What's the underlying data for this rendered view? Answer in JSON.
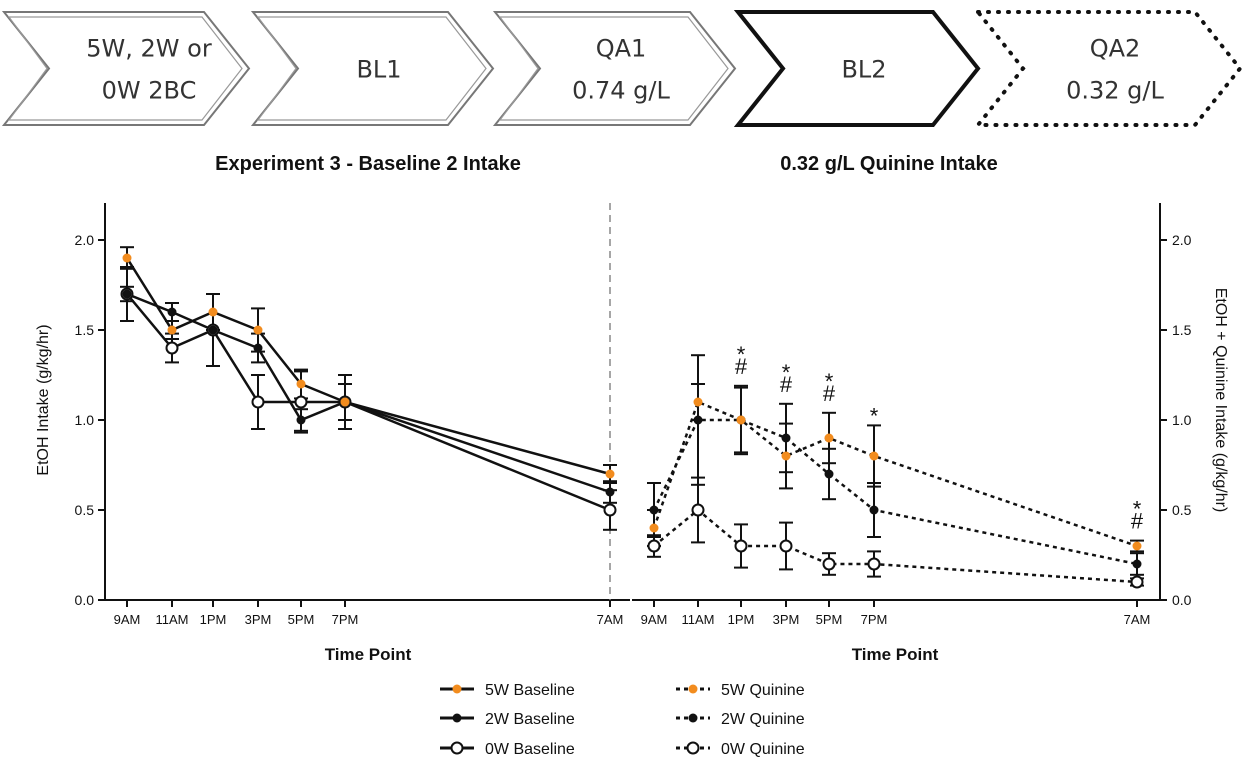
{
  "timeline": {
    "stages": [
      {
        "lines": [
          "5W, 2W or",
          "0W 2BC"
        ],
        "style": "light"
      },
      {
        "lines": [
          "BL1"
        ],
        "style": "light"
      },
      {
        "lines": [
          "QA1",
          "0.74 g/L"
        ],
        "style": "light"
      },
      {
        "lines": [
          "BL2"
        ],
        "style": "bold"
      },
      {
        "lines": [
          "QA2",
          "0.32 g/L"
        ],
        "style": "dotted"
      }
    ]
  },
  "chart_data": [
    {
      "type": "line",
      "title": "Experiment 3 - Baseline 2 Intake",
      "xlabel": "Time Point",
      "ylabel": "EtOH Intake (g/kg/hr)",
      "ylim": [
        0,
        2.0
      ],
      "yticks": [
        "0.0",
        "0.5",
        "1.0",
        "1.5",
        "2.0"
      ],
      "categories": [
        "9AM",
        "11AM",
        "1PM",
        "3PM",
        "5PM",
        "7PM",
        "7AM"
      ],
      "series": [
        {
          "name": "5W Baseline",
          "color": "#f28c1e",
          "marker": "orange-dot",
          "line": "solid",
          "values": [
            1.9,
            1.5,
            1.6,
            1.5,
            1.2,
            1.1,
            0.7
          ],
          "err": [
            0.06,
            0.05,
            0.1,
            0.12,
            0.08,
            0.1,
            0.05
          ]
        },
        {
          "name": "2W Baseline",
          "color": "#111111",
          "marker": "filled-circle",
          "line": "solid",
          "values": [
            1.7,
            1.6,
            1.5,
            1.4,
            1.0,
            1.1,
            0.6
          ],
          "err": [
            0.04,
            0.05,
            0.2,
            0.08,
            0.06,
            0.15,
            0.06
          ]
        },
        {
          "name": "0W Baseline",
          "color": "#111111",
          "marker": "open-circle",
          "line": "solid",
          "values": [
            1.7,
            1.4,
            1.5,
            1.1,
            1.1,
            1.1,
            0.5
          ],
          "err": [
            0.15,
            0.08,
            0.2,
            0.15,
            0.17,
            0.15,
            0.11
          ]
        }
      ]
    },
    {
      "type": "line",
      "title": "0.32 g/L Quinine Intake",
      "xlabel": "Time Point",
      "ylabel": "EtOH + Quinine Intake (g/kg/hr)",
      "ylim": [
        0,
        2.0
      ],
      "yticks": [
        "0.0",
        "0.5",
        "1.0",
        "1.5",
        "2.0"
      ],
      "categories": [
        "9AM",
        "11AM",
        "1PM",
        "3PM",
        "5PM",
        "7PM",
        "7AM"
      ],
      "series": [
        {
          "name": "5W Quinine",
          "color": "#f28c1e",
          "marker": "orange-dot",
          "line": "dotted",
          "values": [
            0.4,
            1.1,
            1.0,
            0.8,
            0.9,
            0.8,
            0.3
          ],
          "err": [
            0.1,
            0.1,
            0.18,
            0.18,
            0.14,
            0.17,
            0.03
          ]
        },
        {
          "name": "2W Quinine",
          "color": "#111111",
          "marker": "filled-circle",
          "line": "dotted",
          "values": [
            0.5,
            1.0,
            1.0,
            0.9,
            0.7,
            0.5,
            0.2
          ],
          "err": [
            0.15,
            0.36,
            0.19,
            0.19,
            0.14,
            0.15,
            0.06
          ]
        },
        {
          "name": "0W Quinine",
          "color": "#111111",
          "marker": "open-circle",
          "line": "dotted",
          "values": [
            0.3,
            0.5,
            0.3,
            0.3,
            0.2,
            0.2,
            0.1
          ],
          "err": [
            0.06,
            0.18,
            0.12,
            0.13,
            0.06,
            0.07,
            0.02
          ]
        }
      ],
      "annotations": [
        {
          "category": "1PM",
          "text": [
            "*",
            "#"
          ]
        },
        {
          "category": "3PM",
          "text": [
            "*",
            "#"
          ]
        },
        {
          "category": "5PM",
          "text": [
            "*",
            "#"
          ]
        },
        {
          "category": "7PM",
          "text": [
            "*"
          ]
        },
        {
          "category": "7AM",
          "text": [
            "*",
            "#"
          ]
        }
      ]
    }
  ]
}
